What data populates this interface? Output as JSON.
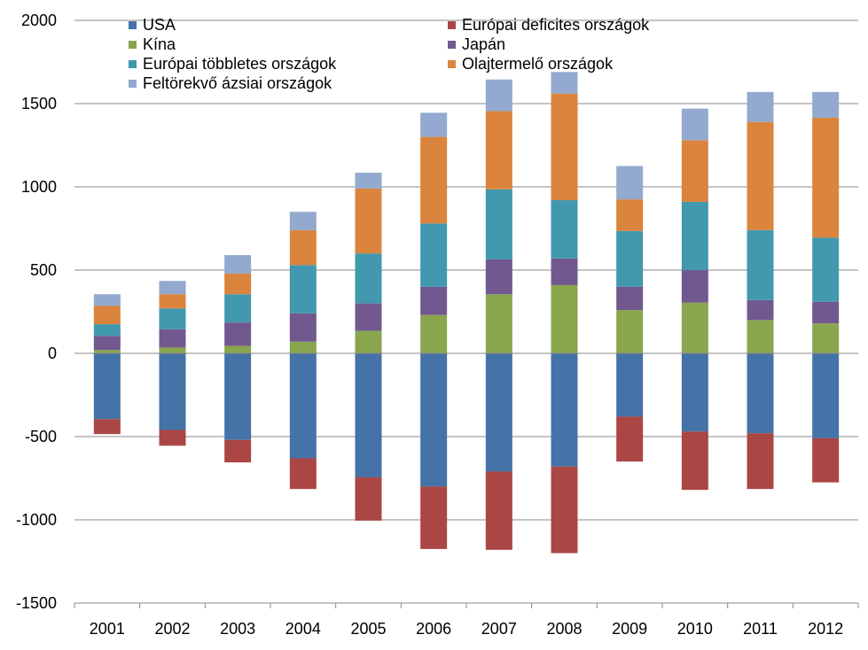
{
  "chart_data": {
    "type": "bar",
    "stacked": true,
    "title": "",
    "xlabel": "",
    "ylabel": "",
    "ylim": [
      -1500,
      2000
    ],
    "yticks": [
      2000,
      1500,
      1000,
      500,
      0,
      -500,
      -1000,
      -1500
    ],
    "grid": true,
    "legend_position": "top",
    "categories": [
      "2001",
      "2002",
      "2003",
      "2004",
      "2005",
      "2006",
      "2007",
      "2008",
      "2009",
      "2010",
      "2011",
      "2012"
    ],
    "series": [
      {
        "name": "USA",
        "color": "#4572A7",
        "values": [
          -395,
          -460,
          -520,
          -630,
          -745,
          -800,
          -710,
          -680,
          -380,
          -470,
          -480,
          -510
        ]
      },
      {
        "name": "Európai deficites országok",
        "color": "#AA4643",
        "values": [
          -90,
          -95,
          -135,
          -185,
          -260,
          -375,
          -470,
          -520,
          -270,
          -350,
          -335,
          -265
        ]
      },
      {
        "name": "Kína",
        "color": "#89A54E",
        "values": [
          20,
          35,
          45,
          70,
          135,
          230,
          355,
          410,
          260,
          305,
          200,
          180
        ]
      },
      {
        "name": "Japán",
        "color": "#71588F",
        "values": [
          85,
          110,
          140,
          170,
          165,
          170,
          210,
          160,
          140,
          195,
          120,
          130
        ]
      },
      {
        "name": "Európai többletes országok",
        "color": "#4198AF",
        "values": [
          70,
          125,
          170,
          290,
          300,
          380,
          420,
          350,
          335,
          410,
          420,
          385
        ]
      },
      {
        "name": "Olajtermelő országok",
        "color": "#DB843D",
        "values": [
          110,
          85,
          125,
          210,
          390,
          520,
          470,
          640,
          190,
          370,
          650,
          720
        ]
      },
      {
        "name": "Feltörekvő ázsiai országok",
        "color": "#93A9CF",
        "values": [
          70,
          80,
          110,
          110,
          95,
          145,
          190,
          130,
          200,
          190,
          180,
          155
        ]
      }
    ]
  }
}
